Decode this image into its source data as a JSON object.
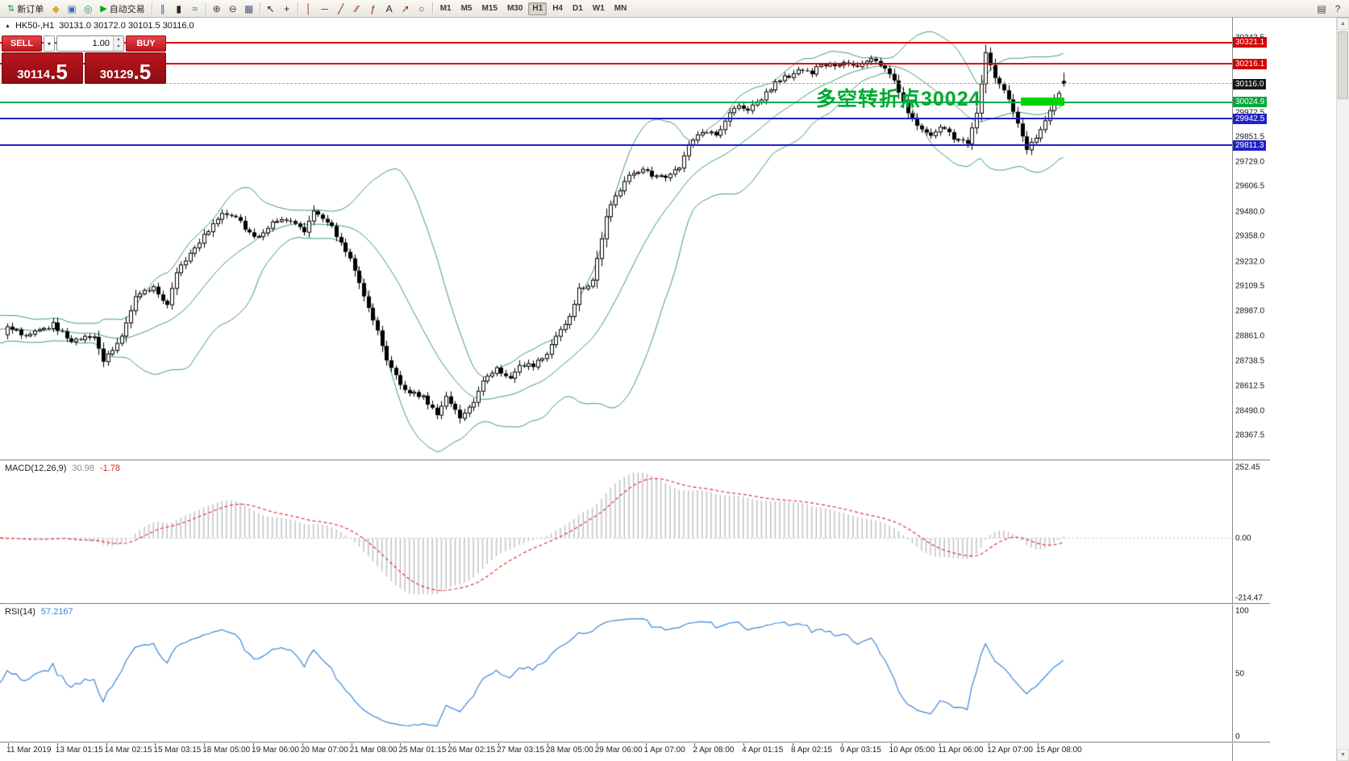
{
  "icons": {
    "dropdown": "▾",
    "spin_up": "▴",
    "spin_down": "▾",
    "collapse": "▲",
    "scroll_up": "▲",
    "scroll_down": "▼"
  },
  "toolbar": {
    "active_timeframe": "H1",
    "items": [
      {
        "type": "button",
        "name": "new-order-button",
        "glyph": "⇅",
        "glyph_color": "#1e9e3e",
        "label": "新订单"
      },
      {
        "type": "icon",
        "name": "alerts-icon",
        "glyph": "◆",
        "color": "#e2a41c"
      },
      {
        "type": "icon",
        "name": "market-watch-icon",
        "glyph": "▣",
        "color": "#3f6fc0"
      },
      {
        "type": "icon",
        "name": "strategy-tester-icon",
        "glyph": "◎",
        "color": "#2f8f5f"
      },
      {
        "type": "button",
        "name": "autotrading-button",
        "glyph": "▶",
        "glyph_color": "#12a012",
        "label": "自动交易"
      },
      {
        "type": "sep"
      },
      {
        "type": "icon",
        "name": "bar-chart-mode-icon",
        "gly­ph": "",
        "glyph": "∥",
        "color": "#2f5f9f"
      },
      {
        "type": "icon",
        "name": "candlestick-mode-icon",
        "glyph": "▮",
        "color": "#222222"
      },
      {
        "type": "icon",
        "name": "line-chart-mode-icon",
        "glyph": "≈",
        "color": "#2f5f9f"
      },
      {
        "type": "sep"
      },
      {
        "type": "icon",
        "name": "zoom-in-icon",
        "glyph": "⊕",
        "color": "#444444"
      },
      {
        "type": "icon",
        "name": "zoom-out-icon",
        "glyph": "⊖",
        "color": "#444444"
      },
      {
        "type": "icon",
        "name": "tile-windows-icon",
        "glyph": "▦",
        "color": "#56568f"
      },
      {
        "type": "sep"
      },
      {
        "type": "icon",
        "name": "cursor-icon",
        "glyph": "↖",
        "color": "#222222"
      },
      {
        "type": "icon",
        "name": "crosshair-icon",
        "glyph": "+",
        "color": "#222222"
      },
      {
        "type": "sep"
      },
      {
        "type": "icon",
        "name": "vertical-line-tool-icon",
        "glyph": "│",
        "color": "#952020"
      },
      {
        "type": "icon",
        "name": "horizontal-line-tool-icon",
        "glyph": "─",
        "color": "#952020"
      },
      {
        "type": "icon",
        "name": "trendline-tool-icon",
        "glyph": "╱",
        "color": "#952020"
      },
      {
        "type": "icon",
        "name": "channel-tool-icon",
        "glyph": "∕∕",
        "color": "#952020"
      },
      {
        "type": "icon",
        "name": "fibonacci-tool-icon",
        "glyph": "ƒ",
        "color": "#952020"
      },
      {
        "type": "icon",
        "name": "text-tool-icon",
        "glyph": "A",
        "color": "#222222"
      },
      {
        "type": "icon",
        "name": "arrows-tool-icon",
        "glyph": "↗",
        "color": "#952020"
      },
      {
        "type": "icon",
        "name": "shapes-tool-icon",
        "glyph": "○",
        "color": "#952020"
      },
      {
        "type": "sep"
      },
      {
        "type": "tf",
        "label": "M1"
      },
      {
        "type": "tf",
        "label": "M5"
      },
      {
        "type": "tf",
        "label": "M15"
      },
      {
        "type": "tf",
        "label": "M30"
      },
      {
        "type": "tf",
        "label": "H1"
      },
      {
        "type": "tf",
        "label": "H4"
      },
      {
        "type": "tf",
        "label": "D1"
      },
      {
        "type": "tf",
        "label": "W1"
      },
      {
        "type": "tf",
        "label": "MN"
      },
      {
        "type": "spring"
      },
      {
        "type": "icon",
        "name": "print-icon",
        "glyph": "▤",
        "color": "#444444"
      },
      {
        "type": "icon",
        "name": "help-icon",
        "glyph": "?",
        "color": "#444444"
      }
    ]
  },
  "trade_panel": {
    "sell_label": "SELL",
    "buy_label": "BUY",
    "volume": "1.00",
    "sell_price_main": "30114",
    "sell_price_big": ".5",
    "buy_price_main": "30129",
    "buy_price_big": ".5"
  },
  "chart": {
    "symbol_period": "HK50-,H1",
    "ohlc_text": "30131.0 30172.0 30101.5 30116.0",
    "annotation": {
      "text": "多空转折点30024",
      "color": "#00a832",
      "bar_color": "#00d500"
    },
    "levels": [
      {
        "name": "resistance-line-1",
        "price": 30321.1,
        "label": "30321.1",
        "color": "#e00000",
        "chip_bg": "#d40000",
        "dashed": false
      },
      {
        "name": "resistance-line-2",
        "price": 30216.1,
        "label": "30216.1",
        "color": "#e00000",
        "chip_bg": "#d40000",
        "dashed": false
      },
      {
        "name": "current-price",
        "price": 30116.0,
        "label": "30116.0",
        "color": "#a8a8a8",
        "chip_bg": "#17171c",
        "dashed": true
      },
      {
        "name": "pivot-line",
        "price": 30024.9,
        "label": "30024.9",
        "color": "#00b050",
        "chip_bg": "#00a83c",
        "dashed": false
      },
      {
        "name": "support-line-1",
        "price": 29942.5,
        "label": "29942.5",
        "color": "#2121c8",
        "chip_bg": "#2121c8",
        "dashed": false
      },
      {
        "name": "support-line-2",
        "price": 29811.3,
        "label": "29811.3",
        "color": "#2121c8",
        "chip_bg": "#2121c8",
        "dashed": false
      }
    ]
  },
  "macd": {
    "name_label": "MACD(12,26,9)",
    "main_value": "30.98",
    "signal_value": "-1.78",
    "main_value_color": "#8a8a8a",
    "signal_value_color": "#e02020",
    "histogram_color": "#bdbdbd",
    "signal_color": "#e02020",
    "scale": [
      {
        "label": "252.45",
        "value": 252.45
      },
      {
        "label": "0.00",
        "value": 0
      },
      {
        "label": "-214.47",
        "value": -214.47
      }
    ]
  },
  "rsi": {
    "name_label": "RSI(14)",
    "value": "57.2167",
    "value_color": "#3a87d8",
    "line_color": "#3a87d8",
    "scale": [
      {
        "label": "100",
        "value": 100
      },
      {
        "label": "50",
        "value": 50
      },
      {
        "label": "0",
        "value": 0
      }
    ]
  },
  "chart_data": {
    "type": "candlestick",
    "symbol": "HK50-",
    "timeframe": "H1",
    "bars_visible": 232,
    "current_bar_ohlc": {
      "open": 30131.0,
      "high": 30172.0,
      "low": 30101.5,
      "close": 30116.0
    },
    "bid": 30114.5,
    "ask": 30129.5,
    "y_axis_range": [
      28248,
      30445
    ],
    "horizontal_levels": [
      30321.1,
      30216.1,
      30024.9,
      29942.5,
      29811.3
    ],
    "annotation_level": 30024,
    "price_axis_ticks": [
      {
        "label": "30343.5",
        "price": 30343.5
      },
      {
        "label": "29972.5",
        "price": 29972.5
      },
      {
        "label": "29851.5",
        "price": 29851.5
      },
      {
        "label": "29729.0",
        "price": 29729.0
      },
      {
        "label": "29606.5",
        "price": 29606.5
      },
      {
        "label": "29480.0",
        "price": 29480.0
      },
      {
        "label": "29358.0",
        "price": 29358.0
      },
      {
        "label": "29232.0",
        "price": 29232.0
      },
      {
        "label": "29109.5",
        "price": 29109.5
      },
      {
        "label": "28987.0",
        "price": 28987.0
      },
      {
        "label": "28861.0",
        "price": 28861.0
      },
      {
        "label": "28738.5",
        "price": 28738.5
      },
      {
        "label": "28612.5",
        "price": 28612.5
      },
      {
        "label": "28490.0",
        "price": 28490.0
      },
      {
        "label": "28367.5",
        "price": 28367.5
      }
    ],
    "time_axis_labels": [
      "11 Mar 2019",
      "13 Mar 01:15",
      "14 Mar 02:15",
      "15 Mar 03:15",
      "18 Mar 05:00",
      "19 Mar 06:00",
      "20 Mar 07:00",
      "21 Mar 08:00",
      "25 Mar 01:15",
      "26 Mar 02:15",
      "27 Mar 03:15",
      "28 Mar 05:00",
      "29 Mar 06:00",
      "1 Apr 07:00",
      "2 Apr 08:00",
      "4 Apr 01:15",
      "8 Apr 02:15",
      "9 Apr 03:15",
      "10 Apr 05:00",
      "11 Apr 06:00",
      "12 Apr 07:00",
      "15 Apr 08:00"
    ],
    "close_waypoints": [
      [
        0,
        28900
      ],
      [
        5,
        28865
      ],
      [
        10,
        28920
      ],
      [
        14,
        28830
      ],
      [
        19,
        28860
      ],
      [
        21,
        28730
      ],
      [
        25,
        28850
      ],
      [
        28,
        29060
      ],
      [
        32,
        29100
      ],
      [
        35,
        29020
      ],
      [
        37,
        29180
      ],
      [
        41,
        29300
      ],
      [
        44,
        29390
      ],
      [
        47,
        29480
      ],
      [
        50,
        29450
      ],
      [
        54,
        29350
      ],
      [
        58,
        29420
      ],
      [
        61,
        29440
      ],
      [
        65,
        29380
      ],
      [
        67,
        29490
      ],
      [
        70,
        29430
      ],
      [
        73,
        29330
      ],
      [
        75,
        29240
      ],
      [
        78,
        29060
      ],
      [
        80,
        28950
      ],
      [
        83,
        28740
      ],
      [
        86,
        28620
      ],
      [
        88,
        28580
      ],
      [
        91,
        28560
      ],
      [
        94,
        28470
      ],
      [
        96,
        28570
      ],
      [
        99,
        28450
      ],
      [
        102,
        28530
      ],
      [
        104,
        28650
      ],
      [
        107,
        28700
      ],
      [
        110,
        28660
      ],
      [
        112,
        28710
      ],
      [
        115,
        28720
      ],
      [
        117,
        28740
      ],
      [
        120,
        28860
      ],
      [
        123,
        28960
      ],
      [
        125,
        29100
      ],
      [
        128,
        29130
      ],
      [
        131,
        29460
      ],
      [
        133,
        29560
      ],
      [
        136,
        29650
      ],
      [
        139,
        29700
      ],
      [
        141,
        29650
      ],
      [
        144,
        29660
      ],
      [
        147,
        29710
      ],
      [
        149,
        29820
      ],
      [
        152,
        29880
      ],
      [
        155,
        29860
      ],
      [
        157,
        29940
      ],
      [
        160,
        30010
      ],
      [
        162,
        29980
      ],
      [
        165,
        30040
      ],
      [
        168,
        30120
      ],
      [
        170,
        30150
      ],
      [
        173,
        30180
      ],
      [
        176,
        30170
      ],
      [
        178,
        30215
      ],
      [
        181,
        30200
      ],
      [
        184,
        30230
      ],
      [
        186,
        30210
      ],
      [
        189,
        30245
      ],
      [
        192,
        30190
      ],
      [
        194,
        30120
      ],
      [
        197,
        29980
      ],
      [
        199,
        29900
      ],
      [
        202,
        29870
      ],
      [
        205,
        29905
      ],
      [
        207,
        29850
      ],
      [
        210,
        29820
      ],
      [
        212,
        29980
      ],
      [
        214,
        30270
      ],
      [
        216,
        30150
      ],
      [
        219,
        30050
      ],
      [
        221,
        29930
      ],
      [
        223,
        29790
      ],
      [
        226,
        29880
      ],
      [
        229,
        30040
      ],
      [
        231,
        30116
      ]
    ],
    "indicators": [
      {
        "type": "bollinger_bands",
        "period": 20,
        "deviation": 2,
        "color": "#3d9e66"
      },
      {
        "type": "macd",
        "fast": 12,
        "slow": 26,
        "signal": 9,
        "current_main": 30.98,
        "current_signal": -1.78,
        "y_range": [
          -214.47,
          252.45
        ]
      },
      {
        "type": "rsi",
        "period": 14,
        "current": 57.2167,
        "y_range": [
          0,
          100
        ]
      }
    ]
  }
}
